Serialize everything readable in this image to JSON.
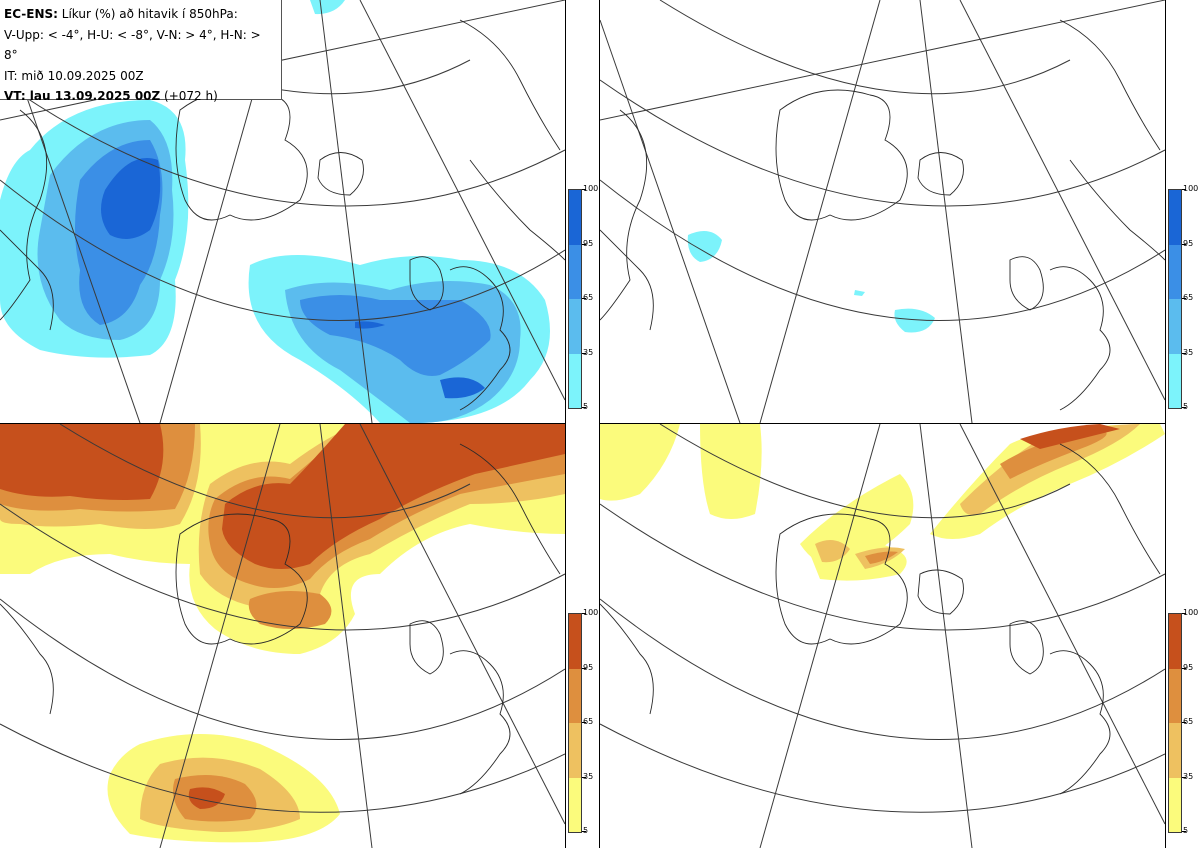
{
  "title": {
    "product": "EC-ENS:",
    "line1_rest": " Líkur (%) að hitavik í 850hPa:",
    "line2": "V-Upp: < -4°, H-U: < -8°, V-N: > 4°, H-N: > 8°",
    "line3": "IT: mið 10.09.2025 00Z",
    "line4_bold": "VT: lau 13.09.2025 00Z",
    "line4_rest": " (+072 h)"
  },
  "panels": [
    {
      "name": "V-Upp",
      "threshold": "< -4°",
      "scheme": "cold"
    },
    {
      "name": "H-U",
      "threshold": "< -8°",
      "scheme": "cold"
    },
    {
      "name": "V-N",
      "threshold": "> 4°",
      "scheme": "warm"
    },
    {
      "name": "H-N",
      "threshold": "> 8°",
      "scheme": "warm"
    }
  ],
  "colorbar": {
    "ticks": [
      "100",
      "95",
      "65",
      "35",
      "5"
    ],
    "cold_colors": [
      "#1a66d6",
      "#3b8fe6",
      "#5bbcee",
      "#7cf3fb"
    ],
    "warm_colors": [
      "#c6501c",
      "#de8f3e",
      "#eec160",
      "#fbfb7c"
    ]
  },
  "colors": {
    "coast": "#2a2a2a",
    "grid": "#3a3a3a",
    "cold_levels": [
      "#7cf3fb",
      "#5bbcee",
      "#3b8fe6",
      "#1a66d6"
    ],
    "warm_levels": [
      "#fbfb7c",
      "#eec160",
      "#de8f3e",
      "#c6501c"
    ]
  }
}
